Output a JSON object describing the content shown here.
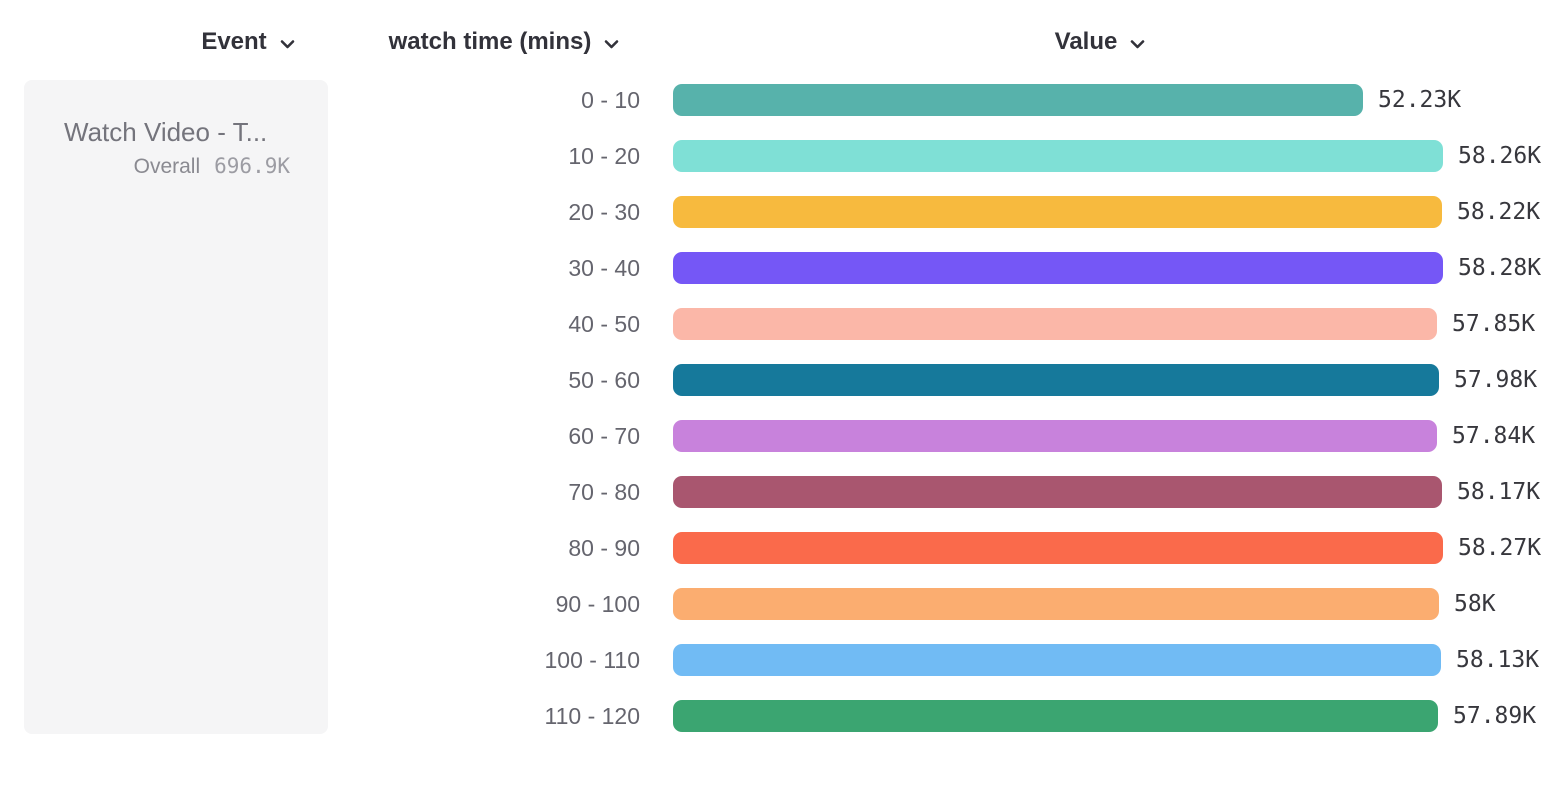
{
  "header": {
    "columns": [
      {
        "label": "Event",
        "icon": "chevron-down-icon"
      },
      {
        "label": "watch time (mins)",
        "icon": "chevron-down-icon"
      },
      {
        "label": "Value",
        "icon": "chevron-down-icon"
      }
    ]
  },
  "event_card": {
    "title": "Watch Video - T...",
    "overall_label": "Overall",
    "overall_value": "696.9K"
  },
  "chart_data": {
    "type": "bar",
    "orientation": "horizontal",
    "title": "",
    "xlabel": "Value",
    "ylabel": "watch time (mins)",
    "xlim": [
      0,
      58280
    ],
    "grid": false,
    "legend": "none",
    "categories": [
      "0 - 10",
      "10 - 20",
      "20 - 30",
      "30 - 40",
      "40 - 50",
      "50 - 60",
      "60 - 70",
      "70 - 80",
      "80 - 90",
      "90 - 100",
      "100 - 110",
      "110 - 120"
    ],
    "values": [
      52230,
      58260,
      58220,
      58280,
      57850,
      57980,
      57840,
      58170,
      58270,
      58000,
      58130,
      57890
    ],
    "value_labels": [
      "52.23K",
      "58.26K",
      "58.22K",
      "58.28K",
      "57.85K",
      "57.98K",
      "57.84K",
      "58.17K",
      "58.27K",
      "58K",
      "58.13K",
      "57.89K"
    ],
    "bar_colors": [
      "#57B2AB",
      "#7FE0D6",
      "#F7BA3E",
      "#7557F6",
      "#FBB7A8",
      "#16799B",
      "#C882DC",
      "#A9566F",
      "#FA6A4B",
      "#FBAD70",
      "#71BBF4",
      "#3BA571"
    ]
  },
  "colors": {
    "header_text": "#32323a",
    "category_text": "#65656e",
    "value_text": "#37373d",
    "card_bg": "#f5f5f6",
    "card_title": "#74747c",
    "card_overall_label": "#8a8a91",
    "card_overall_value": "#9c9ca3"
  }
}
